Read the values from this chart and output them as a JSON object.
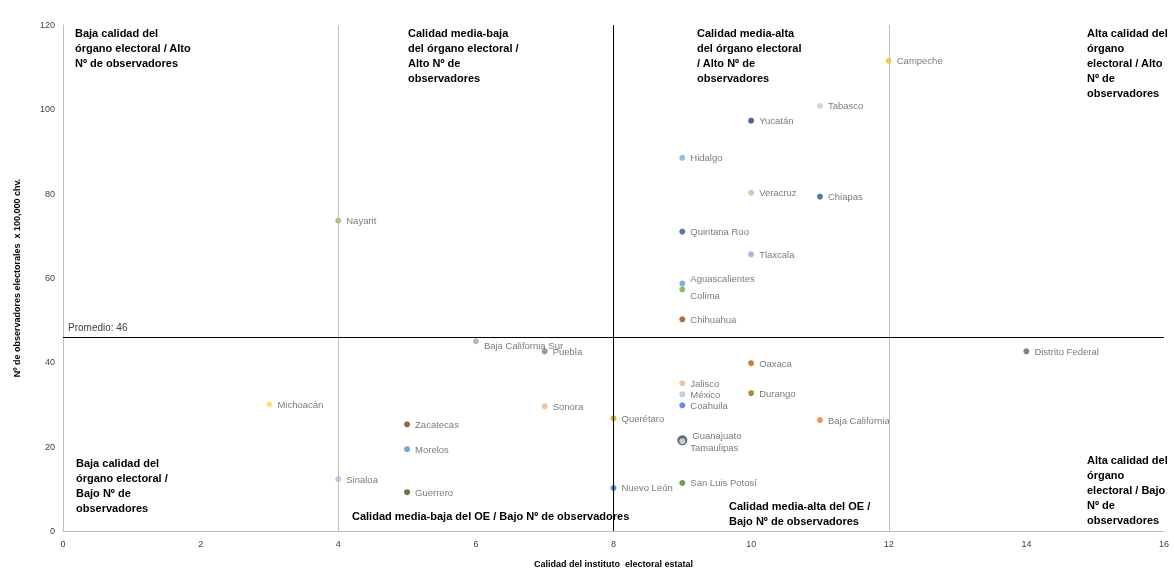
{
  "chart_data": {
    "type": "scatter",
    "xlabel": "Calidad del instituto  electoral estatal",
    "ylabel": "Nº de observadores electorales  x 100,000 chv.",
    "xlim": [
      0,
      16
    ],
    "xticks": [
      0,
      2,
      4,
      6,
      8,
      10,
      12,
      14,
      16
    ],
    "ylim": [
      0,
      120
    ],
    "yticks": [
      0,
      20,
      40,
      60,
      80,
      100,
      120
    ],
    "marker": "circle",
    "annotations": [
      "Baja calidad del órgano electoral / Alto Nº de observadores",
      "Calidad media-baja del órgano electoral / Alto Nº de observadores",
      "Calidad media-alta del órgano electoral / Alto Nº de observadores",
      "Alta calidad del órgano electoral / Alto Nº de observadores",
      "Baja calidad del órgano electoral / Bajo Nº de observadores",
      "Calidad media-baja del OE / Bajo Nº de observadores",
      "Calidad media-alta del OE / Bajo Nº de observadores",
      "Alta calidad del órgano electoral / Bajo Nº de observadores"
    ],
    "ref_lines": [
      {
        "axis": "x",
        "value": 4,
        "color": "#bfbfbf"
      },
      {
        "axis": "x",
        "value": 8,
        "color": "#000000"
      },
      {
        "axis": "x",
        "value": 12,
        "color": "#bfbfbf"
      },
      {
        "axis": "y",
        "value": 46,
        "label": "Promedio: 46",
        "color": "#000000"
      }
    ],
    "series": [
      {
        "name": "Campeche",
        "color": "#ffc000",
        "x": [
          12
        ],
        "values": [
          111.5
        ]
      },
      {
        "name": "Tabasco",
        "color": "#c9c9c9",
        "x": [
          11
        ],
        "values": [
          100.8
        ]
      },
      {
        "name": "Yucatán",
        "color": "#264478",
        "x": [
          10
        ],
        "values": [
          97.3
        ]
      },
      {
        "name": "Hidalgo",
        "color": "#7cafdd",
        "x": [
          9
        ],
        "values": [
          88.5
        ]
      },
      {
        "name": "Veracruz",
        "color": "#a9d18e",
        "x": [
          10
        ],
        "values": [
          80.2
        ]
      },
      {
        "name": "Chiapas",
        "color": "#255e91",
        "x": [
          11
        ],
        "values": [
          79.3
        ]
      },
      {
        "name": "Nayarit",
        "color": "#8fbc5a",
        "x": [
          4
        ],
        "values": [
          73.6
        ]
      },
      {
        "name": "Quintana Roo",
        "color": "#2f52a0",
        "x": [
          9
        ],
        "values": [
          71
        ]
      },
      {
        "name": "Tlaxcala",
        "color": "#8faadc",
        "x": [
          10
        ],
        "values": [
          65.6
        ]
      },
      {
        "name": "Aguascalientes",
        "color": "#5b9bd5",
        "x": [
          9
        ],
        "values": [
          58.7
        ]
      },
      {
        "name": "Colima",
        "color": "#70ad47",
        "x": [
          9
        ],
        "values": [
          57.3
        ]
      },
      {
        "name": "Chihuahua",
        "color": "#9e480e",
        "x": [
          9
        ],
        "values": [
          50.2
        ]
      },
      {
        "name": "Baja California Sur",
        "color": "#a5a5a5",
        "x": [
          6
        ],
        "values": [
          45
        ]
      },
      {
        "name": "Puebla",
        "color": "#7f7f7f",
        "x": [
          7
        ],
        "values": [
          42.6
        ]
      },
      {
        "name": "Distrito Federal",
        "color": "#636363",
        "x": [
          14
        ],
        "values": [
          42.6
        ]
      },
      {
        "name": "Oaxaca",
        "color": "#c55a11",
        "x": [
          10
        ],
        "values": [
          39.8
        ]
      },
      {
        "name": "Jalisco",
        "color": "#f4b183",
        "x": [
          9
        ],
        "values": [
          35
        ]
      },
      {
        "name": "México",
        "color": "#bfbfbf",
        "x": [
          9
        ],
        "values": [
          32.4
        ]
      },
      {
        "name": "Durango",
        "color": "#997300",
        "x": [
          10
        ],
        "values": [
          32.7
        ]
      },
      {
        "name": "Coahuila",
        "color": "#4472c4",
        "x": [
          9
        ],
        "values": [
          29.8
        ]
      },
      {
        "name": "Michoacán",
        "color": "#ffd966",
        "x": [
          3
        ],
        "values": [
          30
        ]
      },
      {
        "name": "Sonora",
        "color": "#f4b183",
        "x": [
          7
        ],
        "values": [
          29.6
        ]
      },
      {
        "name": "Querétaro",
        "color": "#d4a000",
        "x": [
          8
        ],
        "values": [
          26.7
        ]
      },
      {
        "name": "Baja California",
        "color": "#ed7d31",
        "x": [
          11
        ],
        "values": [
          26.3
        ]
      },
      {
        "name": "Zacatecas",
        "color": "#843c0c",
        "x": [
          5
        ],
        "values": [
          25.3
        ]
      },
      {
        "name": "Guanajuato",
        "color": "#1f4e79",
        "x": [
          9
        ],
        "values": [
          21.5
        ]
      },
      {
        "name": "Tamaulipas",
        "color": "#ffe699",
        "x": [
          9
        ],
        "values": [
          21.3
        ]
      },
      {
        "name": "Morelos",
        "color": "#5b8bd5",
        "x": [
          5
        ],
        "values": [
          19.4
        ]
      },
      {
        "name": "Sinaloa",
        "color": "#9dc3e6",
        "x": [
          4
        ],
        "values": [
          12.3
        ]
      },
      {
        "name": "San Luis Potosí",
        "color": "#548235",
        "x": [
          9
        ],
        "values": [
          11.4
        ]
      },
      {
        "name": "Nuevo León",
        "color": "#2e75b6",
        "x": [
          8
        ],
        "values": [
          10.2
        ]
      },
      {
        "name": "Guerrero",
        "color": "#375623",
        "x": [
          5
        ],
        "values": [
          9.2
        ]
      }
    ]
  }
}
